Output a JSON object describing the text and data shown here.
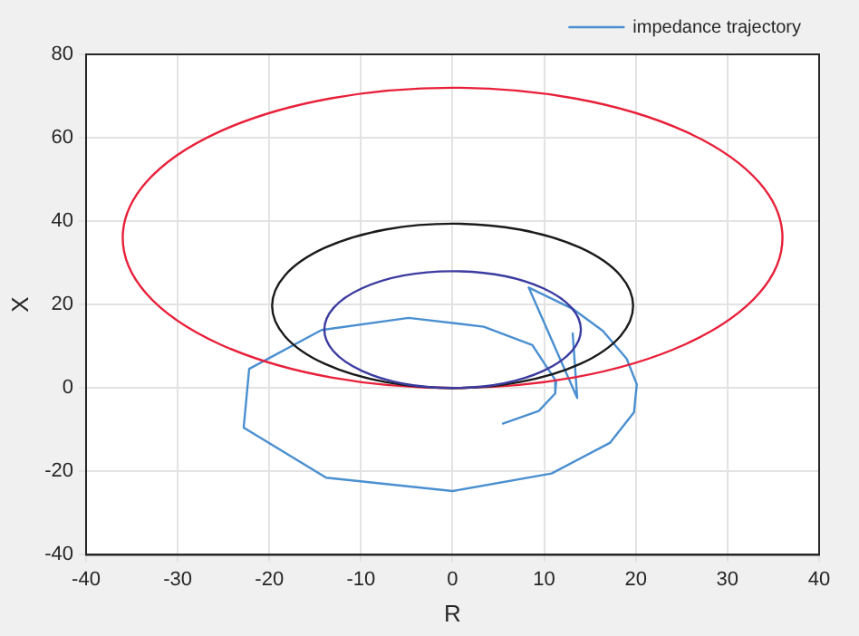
{
  "chart_data": {
    "type": "line",
    "xlabel": "R",
    "ylabel": "X",
    "xlim": [
      -40,
      40
    ],
    "xticks": [
      -40,
      -30,
      -20,
      -10,
      0,
      10,
      20,
      30,
      40
    ],
    "ylim": [
      -40,
      80
    ],
    "yticks": [
      -40,
      -20,
      0,
      20,
      40,
      60,
      80
    ],
    "grid": true,
    "legend": "top right",
    "marker": "none",
    "line_style": "solid",
    "series": [
      {
        "name": "impedance trajectory",
        "color": "#4a8fd0",
        "x": [
          13.1,
          13.6,
          8.3,
          13.1,
          16.4,
          19,
          20.1,
          19.8,
          17.2,
          10.8,
          0,
          -13.8,
          -22.8,
          -22.2,
          -14.3,
          -4.8,
          3.4,
          8.7,
          11.3,
          11.2,
          9.4,
          5.4
        ],
        "values": [
          13.3,
          -2.4,
          24.1,
          19,
          13.7,
          7,
          0.9,
          -5.8,
          -13.1,
          -20.5,
          -24.7,
          -21.5,
          -9.5,
          4.6,
          13.9,
          16.8,
          14.7,
          10.3,
          1.6,
          -1.3,
          -5.5,
          -8.6
        ]
      }
    ]
  }
}
